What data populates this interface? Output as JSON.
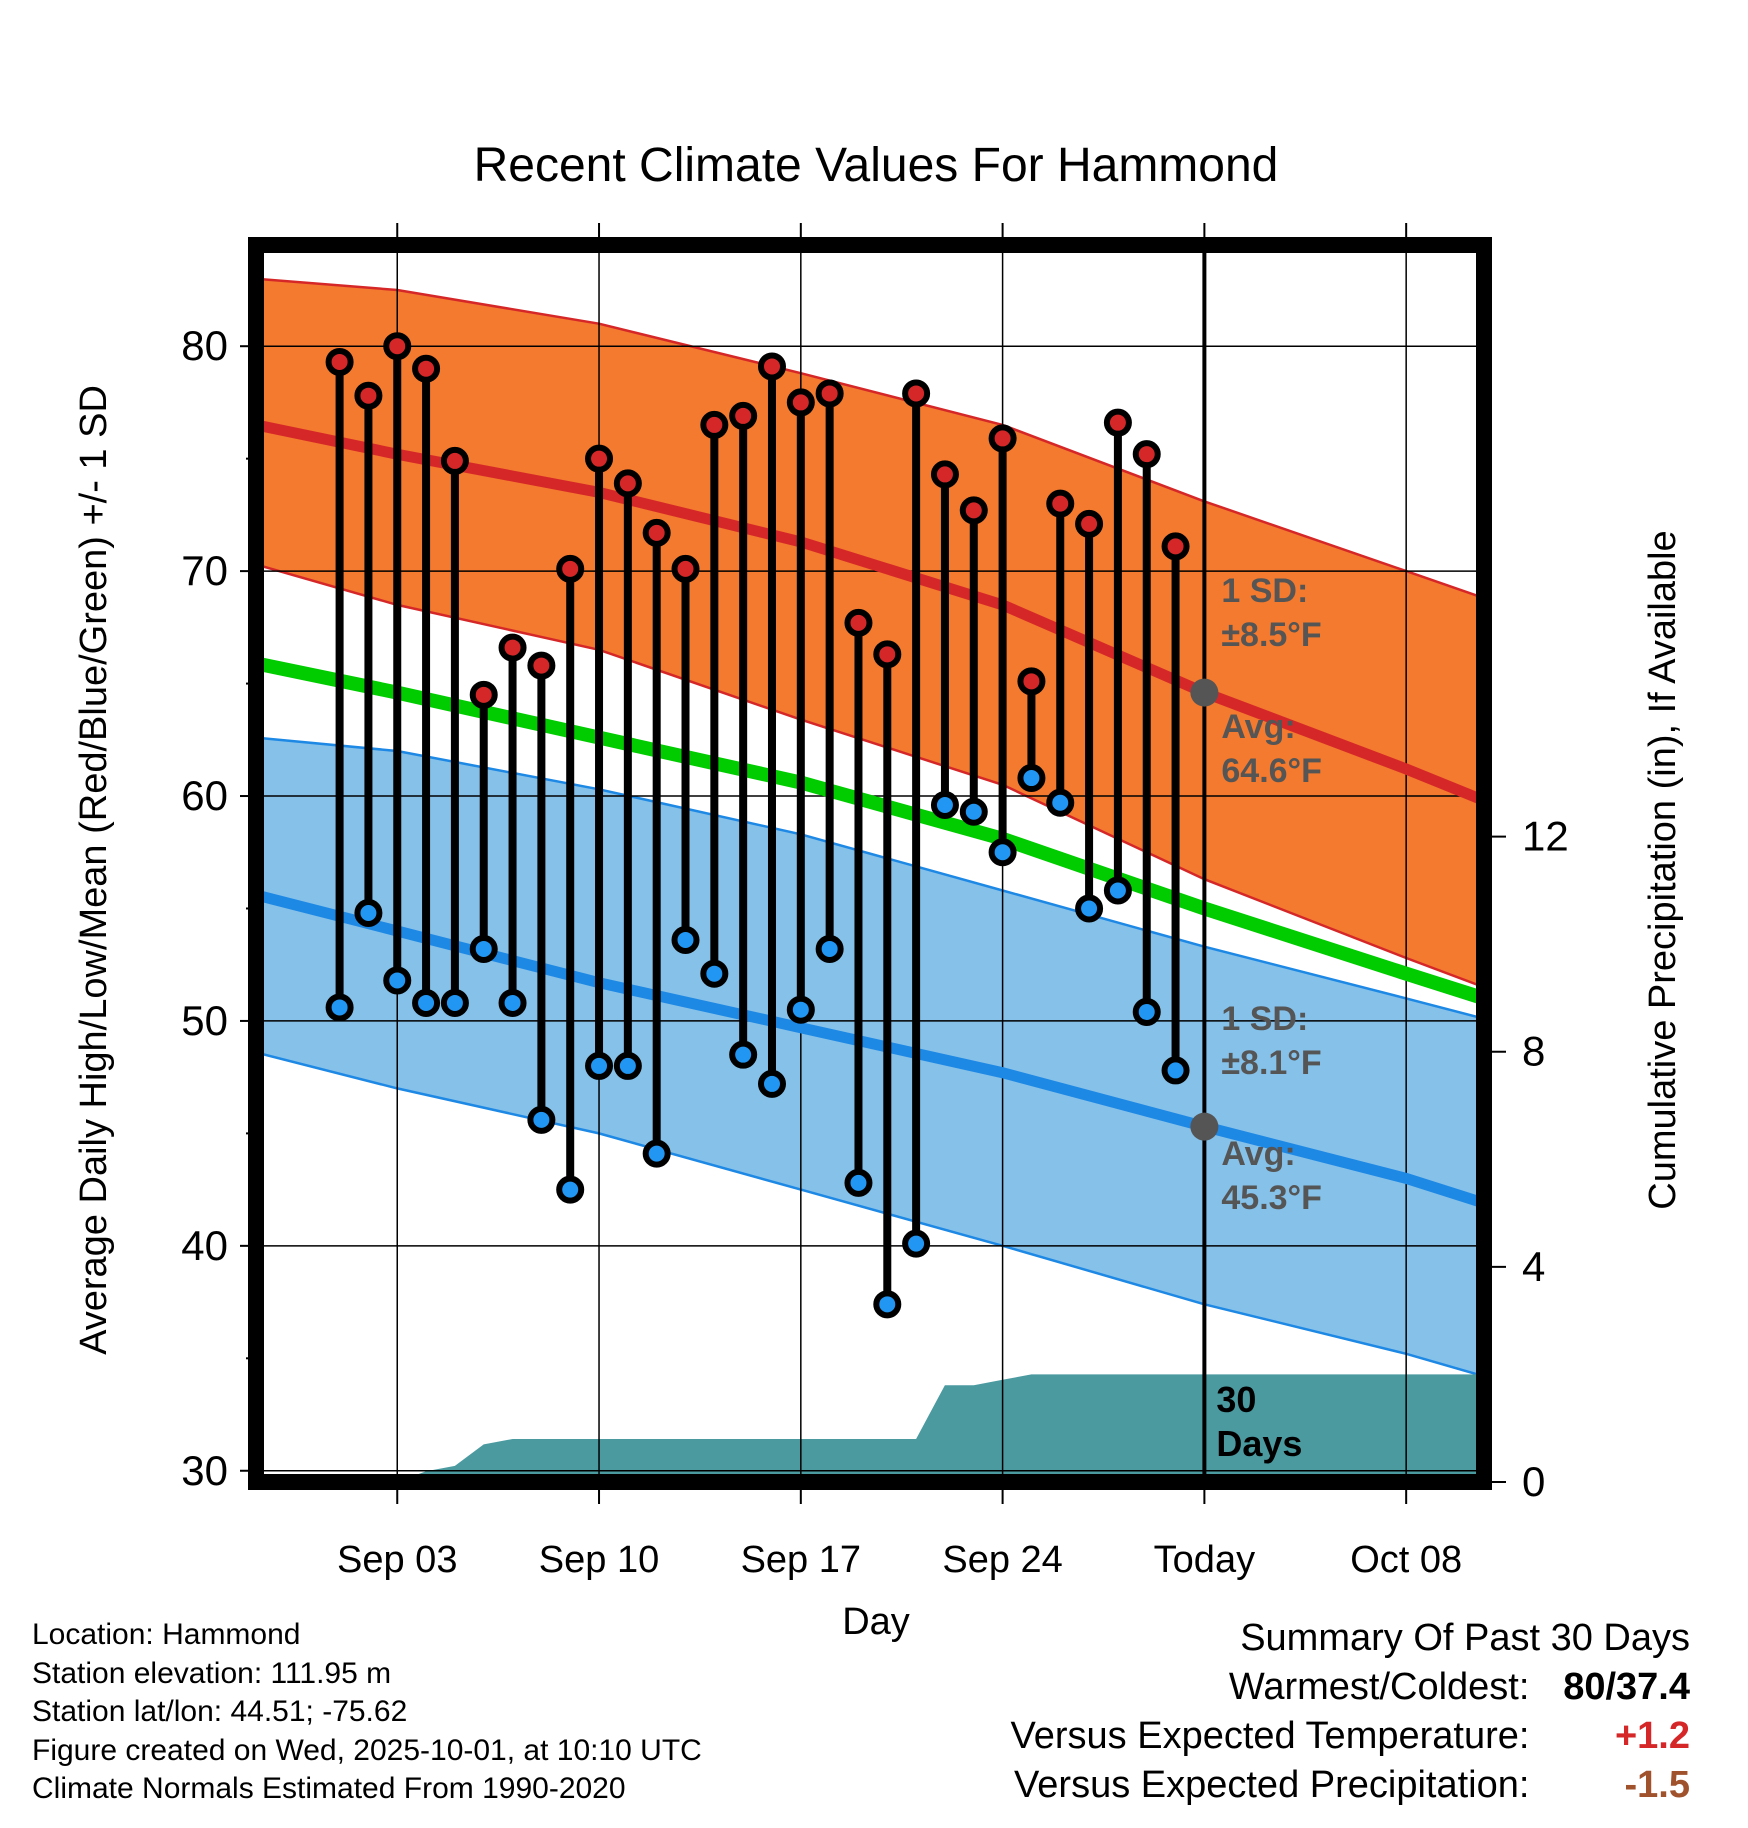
{
  "chart_data": {
    "type": "line",
    "title": "Recent Climate Values For Hammond",
    "xlabel": "Day",
    "ylabel": "Average Daily High/Low/Mean (Red/Blue/Green) +/- 1 SD",
    "y2label": "Cumulative Precipitation (in), If Available",
    "x_range": [
      -1.9,
      40.7
    ],
    "ylim": [
      29.5,
      84.5
    ],
    "y_ticks": [
      30,
      40,
      50,
      60,
      70,
      80
    ],
    "y2lim": [
      0,
      23
    ],
    "y2_ticks": [
      0,
      4,
      8,
      12
    ],
    "x_ticks": [
      {
        "day": 3,
        "label": "Sep 03"
      },
      {
        "day": 10,
        "label": "Sep 10"
      },
      {
        "day": 17,
        "label": "Sep 17"
      },
      {
        "day": 24,
        "label": "Sep 24"
      },
      {
        "day": 31,
        "label": "Today"
      },
      {
        "day": 38,
        "label": "Oct 08"
      }
    ],
    "today_day": 31,
    "highs": [
      79.3,
      77.8,
      80.0,
      79.0,
      74.9,
      64.5,
      66.6,
      65.8,
      70.1,
      75.0,
      73.9,
      71.7,
      70.1,
      76.5,
      76.9,
      79.1,
      77.5,
      77.9,
      67.7,
      66.3,
      77.9,
      74.3,
      72.7,
      75.9,
      65.1,
      73.0,
      72.1,
      76.6,
      75.2,
      71.1
    ],
    "lows": [
      50.6,
      54.8,
      51.8,
      50.8,
      50.8,
      53.2,
      50.8,
      45.6,
      42.5,
      48.0,
      48.0,
      44.1,
      53.6,
      52.1,
      48.5,
      47.2,
      50.5,
      53.2,
      42.8,
      37.4,
      40.1,
      59.6,
      59.3,
      57.5,
      60.8,
      59.7,
      55.0,
      55.8,
      50.4,
      47.8
    ],
    "normal_high": {
      "x": [
        -1.9,
        3,
        10,
        17,
        24,
        31,
        38,
        40.7
      ],
      "y": [
        76.5,
        75.2,
        73.5,
        71.3,
        68.5,
        64.6,
        61.2,
        59.8
      ]
    },
    "normal_high_upper": {
      "x": [
        -1.9,
        3,
        10,
        17,
        24,
        31,
        38,
        40.7
      ],
      "y": [
        83.0,
        82.5,
        81.0,
        78.8,
        76.5,
        73.1,
        70.0,
        68.8
      ]
    },
    "normal_high_lower": {
      "x": [
        -1.9,
        3,
        10,
        17,
        24,
        31,
        38,
        40.7
      ],
      "y": [
        70.3,
        68.5,
        66.5,
        63.4,
        60.5,
        56.3,
        52.8,
        51.5
      ]
    },
    "normal_mean": {
      "x": [
        -1.9,
        3,
        10,
        17,
        24,
        31,
        38,
        40.7
      ],
      "y": [
        65.9,
        64.6,
        62.6,
        60.6,
        58.1,
        55.0,
        52.1,
        51.0
      ]
    },
    "normal_low": {
      "x": [
        -1.9,
        3,
        10,
        17,
        24,
        31,
        38,
        40.7
      ],
      "y": [
        55.6,
        54.0,
        51.7,
        49.7,
        47.7,
        45.3,
        43.0,
        41.9
      ]
    },
    "normal_low_upper": {
      "x": [
        -1.9,
        3,
        10,
        17,
        24,
        31,
        38,
        40.7
      ],
      "y": [
        62.6,
        62.0,
        60.3,
        58.3,
        55.8,
        53.3,
        51.0,
        50.1
      ]
    },
    "normal_low_lower": {
      "x": [
        -1.9,
        3,
        10,
        17,
        24,
        31,
        38,
        40.7
      ],
      "y": [
        48.6,
        47.0,
        45.0,
        42.5,
        40.0,
        37.4,
        35.2,
        34.2
      ]
    },
    "precip_cumulative": {
      "x": [
        -1.9,
        3,
        4,
        5,
        6,
        7,
        10,
        17,
        20,
        21,
        22,
        23,
        24,
        25,
        26,
        31,
        40.7
      ],
      "y": [
        0,
        0,
        0.2,
        0.3,
        0.7,
        0.8,
        0.8,
        0.8,
        0.8,
        0.8,
        1.8,
        1.8,
        1.9,
        2.0,
        2.0,
        2.0,
        2.0
      ]
    },
    "annotations": {
      "high_sd_label": "1 SD:",
      "high_sd_value": "±8.5°F",
      "high_avg_label": "Avg:",
      "high_avg_value": "64.6°F",
      "low_sd_label": "1 SD:",
      "low_sd_value": "±8.1°F",
      "low_avg_label": "Avg:",
      "low_avg_value": "45.3°F",
      "precip_label_1": "30",
      "precip_label_2": "Days"
    },
    "colors": {
      "high_band": "#f37a2e",
      "high_line": "#d62728",
      "low_band": "#85c1e9",
      "low_line": "#1e88e5",
      "mean_line": "#00cc00",
      "precip_fill": "#4a9aa0",
      "high_dot": "#d62728",
      "low_dot": "#2196f3",
      "annotation": "#555555"
    }
  },
  "info": {
    "location": "Location: Hammond",
    "elevation": "Station elevation: 111.95 m",
    "latlon": "Station lat/lon: 44.51; -75.62",
    "created": "Figure created on Wed, 2025-10-01, at 10:10 UTC",
    "normals": "Climate Normals Estimated From 1990-2020"
  },
  "summary": {
    "title": "Summary Of Past 30 Days",
    "warm_cold_label": "Warmest/Coldest:",
    "warm_cold_value": "80/37.4",
    "temp_label": "Versus Expected Temperature:",
    "temp_value": "+1.2",
    "temp_color": "#d62728",
    "precip_label": "Versus Expected Precipitation:",
    "precip_value": "-1.5",
    "precip_color": "#a0522d"
  }
}
